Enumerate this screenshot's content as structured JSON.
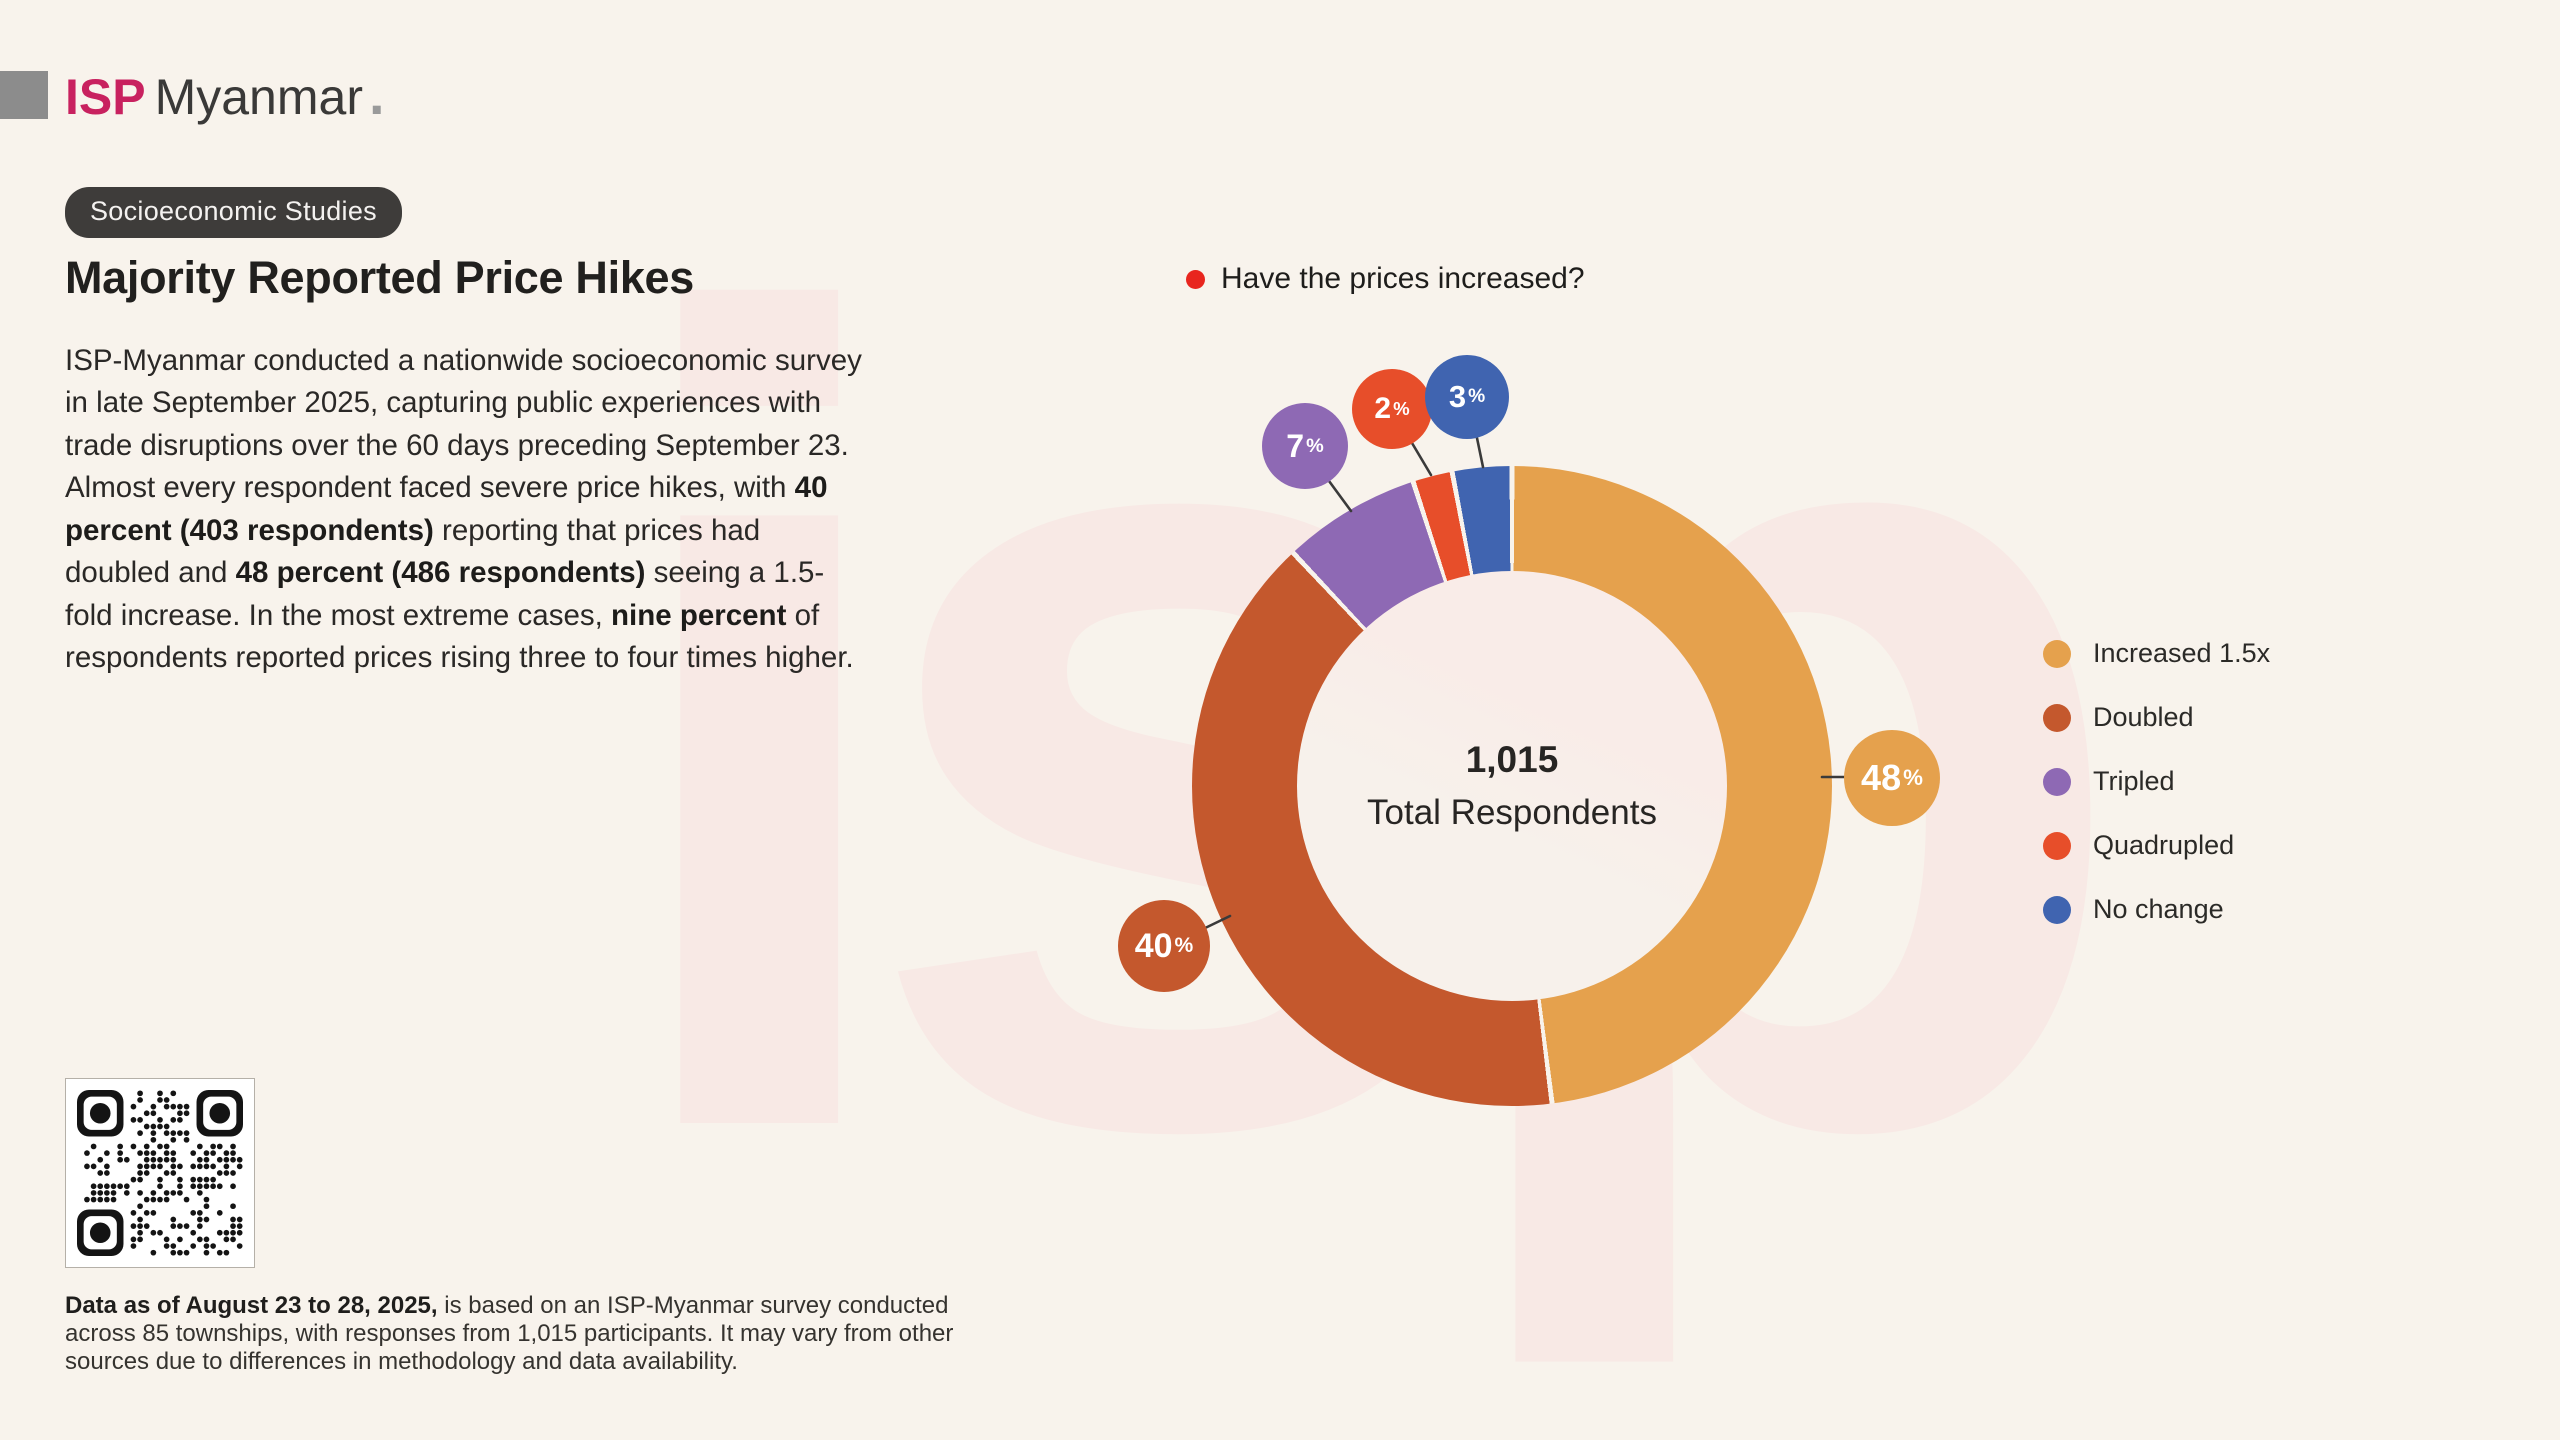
{
  "page": {
    "background": "#F8F3EC",
    "watermark_text": "isp",
    "watermark_color": "#F8E9E5"
  },
  "logo": {
    "isp": "ISP",
    "name": "Myanmar",
    "dot": ".",
    "isp_color": "#C8215F",
    "square_color": "#8C8C8C"
  },
  "header": {
    "badge": "Socioeconomic Studies",
    "title": "Majority Reported Price Hikes"
  },
  "intro": {
    "segments": [
      {
        "text": "ISP-Myanmar conducted a nationwide socioeconomic survey in late September 2025, capturing public experiences with trade disruptions over the 60 days preceding September 23. Almost every respondent faced severe price hikes, with ",
        "bold": false
      },
      {
        "text": "40 percent (403 respondents)",
        "bold": true
      },
      {
        "text": " reporting that prices had doubled and ",
        "bold": false
      },
      {
        "text": "48 percent (486 respondents)",
        "bold": true
      },
      {
        "text": " seeing a 1.5-fold increase. In the most extreme cases, ",
        "bold": false
      },
      {
        "text": "nine percent",
        "bold": true
      },
      {
        "text": " of respondents reported prices rising three to four times higher.",
        "bold": false
      }
    ]
  },
  "chart": {
    "bullet_color": "#E8251E",
    "question": "Have the prices increased?"
  },
  "chart_data": {
    "type": "pie",
    "donut": true,
    "title": "Have the prices increased?",
    "center_value": "1,015",
    "center_label": "Total Respondents",
    "total_respondents": 1015,
    "legend_position": "right",
    "series": [
      {
        "name": "Increased 1.5x",
        "value": 48,
        "label": "48%",
        "color": "#E5A14D"
      },
      {
        "name": "Doubled",
        "value": 40,
        "label": "40%",
        "color": "#C4582D"
      },
      {
        "name": "Tripled",
        "value": 7,
        "label": "7%",
        "color": "#8E69B4"
      },
      {
        "name": "Quadrupled",
        "value": 2,
        "label": "2%",
        "color": "#E74E2A"
      },
      {
        "name": "No change",
        "value": 3,
        "label": "3%",
        "color": "#4064B0"
      }
    ]
  },
  "footer": {
    "segments": [
      {
        "text": "Data as of August 23 to 28, 2025,",
        "bold": true
      },
      {
        "text": " is based on an ISP-Myanmar survey conducted across 85 townships, with responses from 1,015 participants. It may vary from other sources due to differences in methodology and data availability.",
        "bold": false
      }
    ]
  }
}
